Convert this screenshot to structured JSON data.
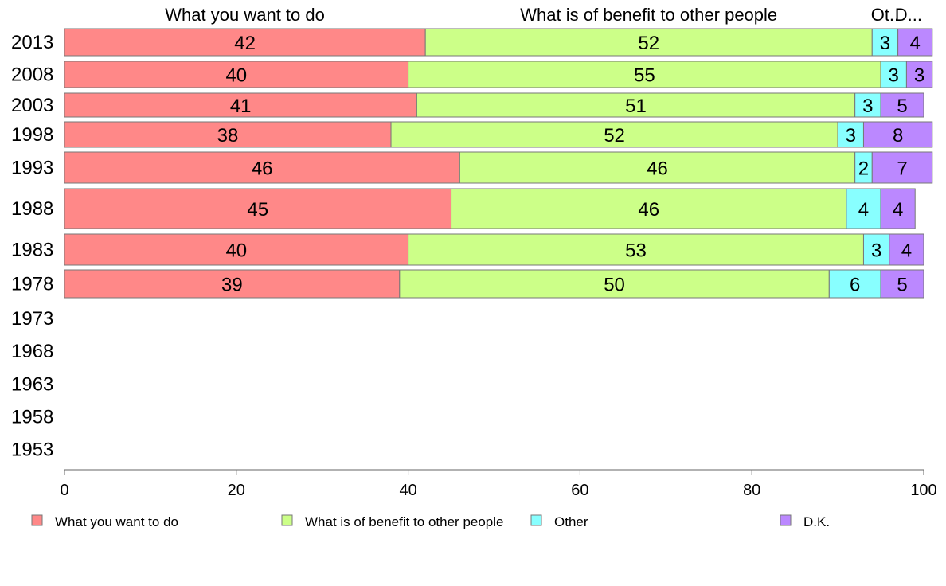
{
  "chart_data": {
    "type": "bar",
    "orientation": "horizontal",
    "stacked": true,
    "categories": [
      "2013",
      "2008",
      "2003",
      "1998",
      "1993",
      "1988",
      "1983",
      "1978",
      "1973",
      "1968",
      "1963",
      "1958",
      "1953"
    ],
    "series": [
      {
        "name": "What you want to do",
        "short_label": "What you want to do",
        "color": "#ff8888",
        "values": [
          42,
          40,
          41,
          38,
          46,
          45,
          40,
          39,
          null,
          null,
          null,
          null,
          null
        ]
      },
      {
        "name": "What is of benefit to other people",
        "short_label": "What is of benefit to other people",
        "color": "#ccff88",
        "values": [
          52,
          55,
          51,
          52,
          46,
          46,
          53,
          50,
          null,
          null,
          null,
          null,
          null
        ]
      },
      {
        "name": "Other",
        "short_label": "Ot..",
        "color": "#88ffff",
        "values": [
          3,
          3,
          3,
          3,
          2,
          4,
          3,
          6,
          null,
          null,
          null,
          null,
          null
        ]
      },
      {
        "name": "D.K.",
        "short_label": "D...",
        "color": "#bb88ff",
        "values": [
          4,
          3,
          5,
          8,
          7,
          4,
          4,
          5,
          null,
          null,
          null,
          null,
          null
        ]
      }
    ],
    "xlim": [
      0,
      100
    ],
    "xticks": [
      0,
      20,
      40,
      60,
      80,
      100
    ],
    "title": "",
    "xlabel": "",
    "ylabel": "",
    "grid": false,
    "legend_position": "bottom"
  }
}
